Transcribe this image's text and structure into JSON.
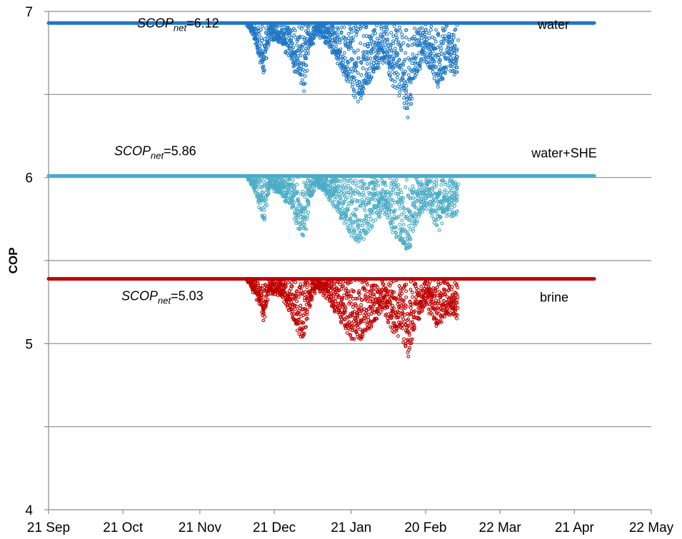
{
  "chart_data": {
    "type": "scatter",
    "ylabel": "COP",
    "ylim": [
      4,
      7
    ],
    "yticks": [
      4,
      5,
      6,
      7
    ],
    "ygrid": [
      4.5,
      5,
      5.5,
      6,
      6.5,
      7
    ],
    "xlim": [
      "2012-09-21",
      "2013-05-22"
    ],
    "xticks": [
      "2012-09-21",
      "2012-10-21",
      "2012-11-21",
      "2012-12-21",
      "2013-01-21",
      "2013-02-20",
      "2013-03-22",
      "2013-04-21",
      "2013-05-22"
    ],
    "xtick_labels": [
      "21 Sep",
      "21 Oct",
      "21 Nov",
      "21 Dec",
      "21 Jan",
      "20 Feb",
      "22 Mar",
      "21 Apr",
      "22 May"
    ],
    "grid": "horizontal",
    "series": [
      {
        "name": "water",
        "color": "#1f77c4",
        "baseline": 6.93,
        "range": [
          "2012-09-21",
          "2013-04-29"
        ],
        "dip_samples": [
          [
            "2012-12-10",
            6.93
          ],
          [
            "2012-12-13",
            6.82
          ],
          [
            "2012-12-15",
            6.72
          ],
          [
            "2012-12-17",
            6.6
          ],
          [
            "2012-12-19",
            6.85
          ],
          [
            "2012-12-24",
            6.8
          ],
          [
            "2012-12-28",
            6.7
          ],
          [
            "2012-12-30",
            6.62
          ],
          [
            "2013-01-02",
            6.5
          ],
          [
            "2013-01-04",
            6.75
          ],
          [
            "2013-01-07",
            6.88
          ],
          [
            "2013-01-12",
            6.8
          ],
          [
            "2013-01-17",
            6.65
          ],
          [
            "2013-01-20",
            6.55
          ],
          [
            "2013-01-24",
            6.45
          ],
          [
            "2013-01-29",
            6.6
          ],
          [
            "2013-02-03",
            6.7
          ],
          [
            "2013-02-07",
            6.55
          ],
          [
            "2013-02-11",
            6.45
          ],
          [
            "2013-02-13",
            6.35
          ],
          [
            "2013-02-16",
            6.6
          ],
          [
            "2013-02-20",
            6.7
          ],
          [
            "2013-02-25",
            6.55
          ],
          [
            "2013-03-01",
            6.65
          ],
          [
            "2013-03-05",
            6.62
          ]
        ]
      },
      {
        "name": "water+SHE",
        "color": "#4bacc6",
        "baseline": 6.01,
        "range": [
          "2012-09-21",
          "2013-04-29"
        ],
        "dip_samples": [
          [
            "2012-12-10",
            6.01
          ],
          [
            "2012-12-13",
            5.92
          ],
          [
            "2012-12-15",
            5.83
          ],
          [
            "2012-12-17",
            5.73
          ],
          [
            "2012-12-19",
            5.95
          ],
          [
            "2012-12-24",
            5.9
          ],
          [
            "2012-12-28",
            5.8
          ],
          [
            "2012-12-30",
            5.7
          ],
          [
            "2013-01-02",
            5.62
          ],
          [
            "2013-01-04",
            5.85
          ],
          [
            "2013-01-07",
            5.96
          ],
          [
            "2013-01-12",
            5.88
          ],
          [
            "2013-01-17",
            5.75
          ],
          [
            "2013-01-20",
            5.66
          ],
          [
            "2013-01-24",
            5.6
          ],
          [
            "2013-01-29",
            5.7
          ],
          [
            "2013-02-03",
            5.8
          ],
          [
            "2013-02-07",
            5.66
          ],
          [
            "2013-02-11",
            5.6
          ],
          [
            "2013-02-13",
            5.52
          ],
          [
            "2013-02-16",
            5.72
          ],
          [
            "2013-02-20",
            5.82
          ],
          [
            "2013-02-25",
            5.68
          ],
          [
            "2013-03-01",
            5.78
          ],
          [
            "2013-03-05",
            5.75
          ]
        ]
      },
      {
        "name": "brine",
        "color": "#c00000",
        "baseline": 5.39,
        "range": [
          "2012-09-21",
          "2013-04-29"
        ],
        "dip_samples": [
          [
            "2012-12-10",
            5.39
          ],
          [
            "2012-12-13",
            5.3
          ],
          [
            "2012-12-15",
            5.22
          ],
          [
            "2012-12-17",
            5.13
          ],
          [
            "2012-12-19",
            5.32
          ],
          [
            "2012-12-24",
            5.28
          ],
          [
            "2012-12-28",
            5.18
          ],
          [
            "2012-12-30",
            5.08
          ],
          [
            "2013-01-02",
            5.02
          ],
          [
            "2013-01-04",
            5.22
          ],
          [
            "2013-01-07",
            5.34
          ],
          [
            "2013-01-12",
            5.26
          ],
          [
            "2013-01-17",
            5.13
          ],
          [
            "2013-01-20",
            5.04
          ],
          [
            "2013-01-24",
            5.0
          ],
          [
            "2013-01-29",
            5.1
          ],
          [
            "2013-02-03",
            5.2
          ],
          [
            "2013-02-07",
            5.06
          ],
          [
            "2013-02-11",
            5.0
          ],
          [
            "2013-02-13",
            4.92
          ],
          [
            "2013-02-16",
            5.12
          ],
          [
            "2013-02-20",
            5.22
          ],
          [
            "2013-02-25",
            5.1
          ],
          [
            "2013-03-01",
            5.18
          ],
          [
            "2013-03-05",
            5.14
          ]
        ]
      }
    ],
    "annotations": [
      {
        "series": "water",
        "prefix": "SCOP",
        "sub": "net",
        "value": "=6.12"
      },
      {
        "series": "water+SHE",
        "prefix": "SCOP",
        "sub": "net",
        "value": "=5.86"
      },
      {
        "series": "brine",
        "prefix": "SCOP",
        "sub": "net",
        "value": "=5.03"
      }
    ]
  }
}
